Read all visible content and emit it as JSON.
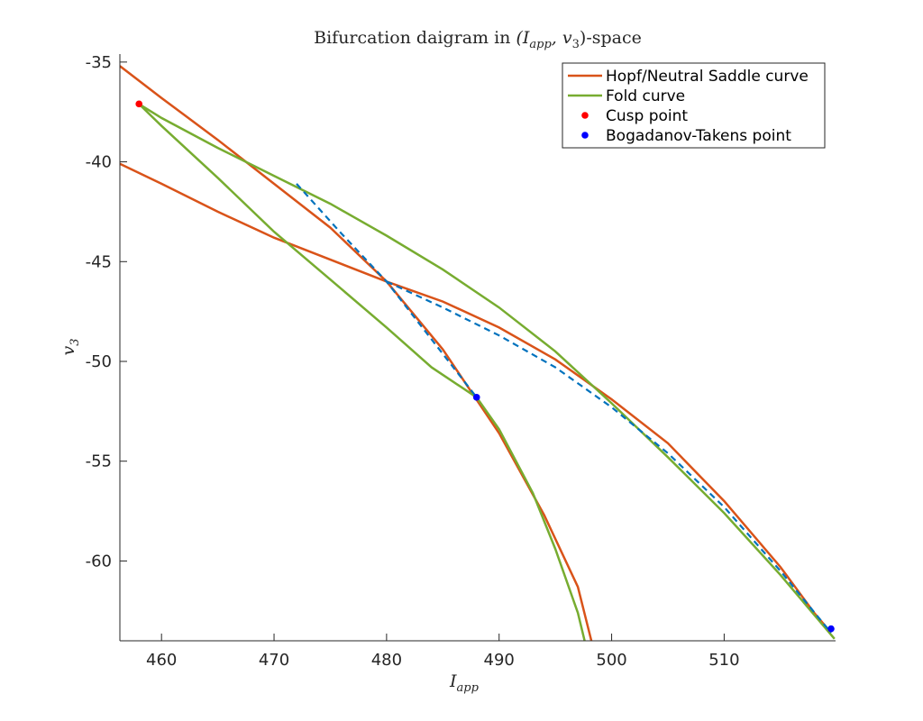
{
  "chart_data": {
    "type": "line",
    "title_prefix": "Bifurcation daigram in ",
    "title_math": "(I",
    "title_sub": "app",
    "title_mid": ", v",
    "title_sub2": "3",
    "title_suffix": ")-space",
    "xlabel": "I",
    "xlabel_sub": "app",
    "ylabel": "v",
    "ylabel_sub": "3",
    "xlim": [
      456.3,
      519.9
    ],
    "ylim": [
      -64,
      -34.6
    ],
    "xticks": [
      460,
      470,
      480,
      490,
      500,
      510
    ],
    "yticks": [
      -35,
      -40,
      -45,
      -50,
      -55,
      -60
    ],
    "grid": false,
    "legend_position": "top-right",
    "colors": {
      "hopf": "#D95319",
      "fold": "#77AC30",
      "dashed": "#0072BD",
      "cusp": "#FF0000",
      "bt": "#0000FF",
      "axis": "#262626"
    },
    "series": [
      {
        "name": "Hopf/Neutral Saddle curve",
        "style": "solid",
        "color_key": "hopf",
        "segments": [
          [
            [
              456.3,
              -35.2
            ],
            [
              460,
              -36.8
            ],
            [
              465,
              -38.9
            ],
            [
              470,
              -41.1
            ],
            [
              475,
              -43.3
            ],
            [
              480,
              -46.0
            ],
            [
              485,
              -49.4
            ],
            [
              490,
              -53.6
            ],
            [
              494,
              -57.7
            ],
            [
              497,
              -61.3
            ],
            [
              498.2,
              -64.0
            ]
          ],
          [
            [
              456.3,
              -40.1
            ],
            [
              460,
              -41.1
            ],
            [
              465,
              -42.5
            ],
            [
              470,
              -43.8
            ],
            [
              475,
              -44.9
            ],
            [
              480,
              -46.0
            ],
            [
              485,
              -47.0
            ],
            [
              490,
              -48.3
            ],
            [
              495,
              -49.9
            ],
            [
              500,
              -51.9
            ],
            [
              505,
              -54.1
            ],
            [
              510,
              -57.0
            ],
            [
              515,
              -60.3
            ],
            [
              518,
              -62.6
            ],
            [
              519.5,
              -63.6
            ]
          ]
        ]
      },
      {
        "name": "Fold curve",
        "style": "solid",
        "color_key": "fold",
        "segments": [
          [
            [
              458,
              -37.1
            ],
            [
              460,
              -38.2
            ],
            [
              465,
              -40.8
            ],
            [
              470,
              -43.5
            ],
            [
              475,
              -45.9
            ],
            [
              480,
              -48.3
            ],
            [
              484,
              -50.3
            ],
            [
              488,
              -51.8
            ],
            [
              490,
              -53.4
            ],
            [
              493,
              -56.6
            ],
            [
              495,
              -59.4
            ],
            [
              497,
              -62.6
            ],
            [
              497.6,
              -64.0
            ]
          ],
          [
            [
              458,
              -37.1
            ],
            [
              460,
              -37.8
            ],
            [
              465,
              -39.3
            ],
            [
              470,
              -40.7
            ],
            [
              475,
              -42.1
            ],
            [
              480,
              -43.7
            ],
            [
              485,
              -45.4
            ],
            [
              490,
              -47.3
            ],
            [
              495,
              -49.5
            ],
            [
              500,
              -52.1
            ],
            [
              505,
              -54.8
            ],
            [
              510,
              -57.6
            ],
            [
              515,
              -60.7
            ],
            [
              519.8,
              -63.9
            ]
          ]
        ]
      },
      {
        "name": "",
        "style": "dashed",
        "color_key": "dashed",
        "segments": [
          [
            [
              472,
              -41.1
            ],
            [
              476,
              -43.6
            ],
            [
              480,
              -46.0
            ],
            [
              484,
              -48.9
            ],
            [
              488,
              -51.8
            ]
          ],
          [
            [
              480,
              -46.0
            ],
            [
              485,
              -47.3
            ],
            [
              490,
              -48.7
            ],
            [
              495,
              -50.3
            ],
            [
              500,
              -52.3
            ],
            [
              505,
              -54.6
            ],
            [
              510,
              -57.3
            ],
            [
              515,
              -60.5
            ],
            [
              519.5,
              -63.6
            ]
          ]
        ]
      }
    ],
    "points": [
      {
        "name": "Cusp point",
        "color_key": "cusp",
        "coords": [
          [
            458,
            -37.1
          ]
        ]
      },
      {
        "name": "Bogadanov-Takens point",
        "color_key": "bt",
        "coords": [
          [
            488,
            -51.8
          ],
          [
            519.5,
            -63.4
          ]
        ]
      }
    ],
    "legend": [
      {
        "label": "Hopf/Neutral Saddle curve",
        "kind": "line",
        "color_key": "hopf"
      },
      {
        "label": "Fold curve",
        "kind": "line",
        "color_key": "fold"
      },
      {
        "label": "Cusp point",
        "kind": "marker",
        "color_key": "cusp"
      },
      {
        "label": "Bogadanov-Takens point",
        "kind": "marker",
        "color_key": "bt"
      }
    ]
  }
}
